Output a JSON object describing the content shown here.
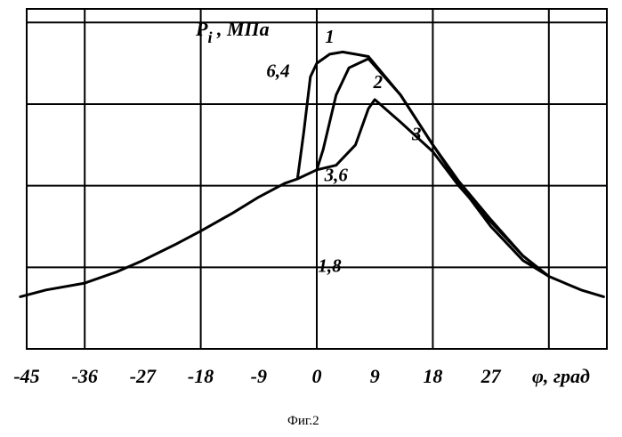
{
  "chart_data": {
    "type": "line",
    "title": "",
    "ylabel_main": "P",
    "ylabel_sub": "i",
    "ylabel_rest": " , МПа",
    "xlabel": "φ, град",
    "x_ticks": [
      "-45",
      "-36",
      "-27",
      "-18",
      "-9",
      "0",
      "9",
      "18",
      "27"
    ],
    "x_tick_values": [
      -45,
      -36,
      -27,
      -18,
      -9,
      0,
      9,
      18,
      27
    ],
    "xlim": [
      -45,
      45
    ],
    "ylim": [
      0,
      7.5
    ],
    "grid": true,
    "grid_x": [
      -36,
      -18,
      0,
      18,
      36
    ],
    "grid_y": [
      1.8,
      3.6,
      5.4,
      7.2
    ],
    "value_annotations": [
      {
        "text": "6,4",
        "x": -6,
        "y": 6.0
      },
      {
        "text": "3,6",
        "x": 3,
        "y": 3.7
      },
      {
        "text": "1,8",
        "x": 2,
        "y": 1.7
      }
    ],
    "series": [
      {
        "name": "1",
        "x": [
          -46,
          -42,
          -36,
          -31,
          -27,
          -22,
          -18,
          -13,
          -9,
          -5,
          -3,
          -2,
          -1,
          0,
          2,
          4,
          6,
          8,
          13,
          18,
          22,
          27,
          32,
          36,
          41,
          44.5
        ],
        "y": [
          1.15,
          1.3,
          1.45,
          1.7,
          1.95,
          2.3,
          2.6,
          3.0,
          3.35,
          3.65,
          3.75,
          4.8,
          6.0,
          6.3,
          6.5,
          6.55,
          6.5,
          6.45,
          5.6,
          4.5,
          3.65,
          2.7,
          1.95,
          1.6,
          1.3,
          1.15
        ]
      },
      {
        "name": "2",
        "x": [
          -3,
          0,
          1,
          3,
          5,
          8,
          13,
          18,
          22,
          27,
          32,
          36
        ],
        "y": [
          3.75,
          3.95,
          4.4,
          5.6,
          6.2,
          6.4,
          5.6,
          4.5,
          3.7,
          2.85,
          2.05,
          1.6
        ]
      },
      {
        "name": "3",
        "x": [
          0,
          3,
          6,
          8,
          9,
          13,
          18,
          22,
          27,
          32,
          36
        ],
        "y": [
          3.95,
          4.05,
          4.5,
          5.3,
          5.5,
          5.0,
          4.35,
          3.6,
          2.8,
          2.05,
          1.6
        ]
      }
    ],
    "curve_labels": [
      {
        "text": "1",
        "x": 2,
        "y": 6.75
      },
      {
        "text": "2",
        "x": 9.5,
        "y": 5.75
      },
      {
        "text": "3",
        "x": 15.5,
        "y": 4.6
      }
    ]
  },
  "caption": "Фиг.2"
}
